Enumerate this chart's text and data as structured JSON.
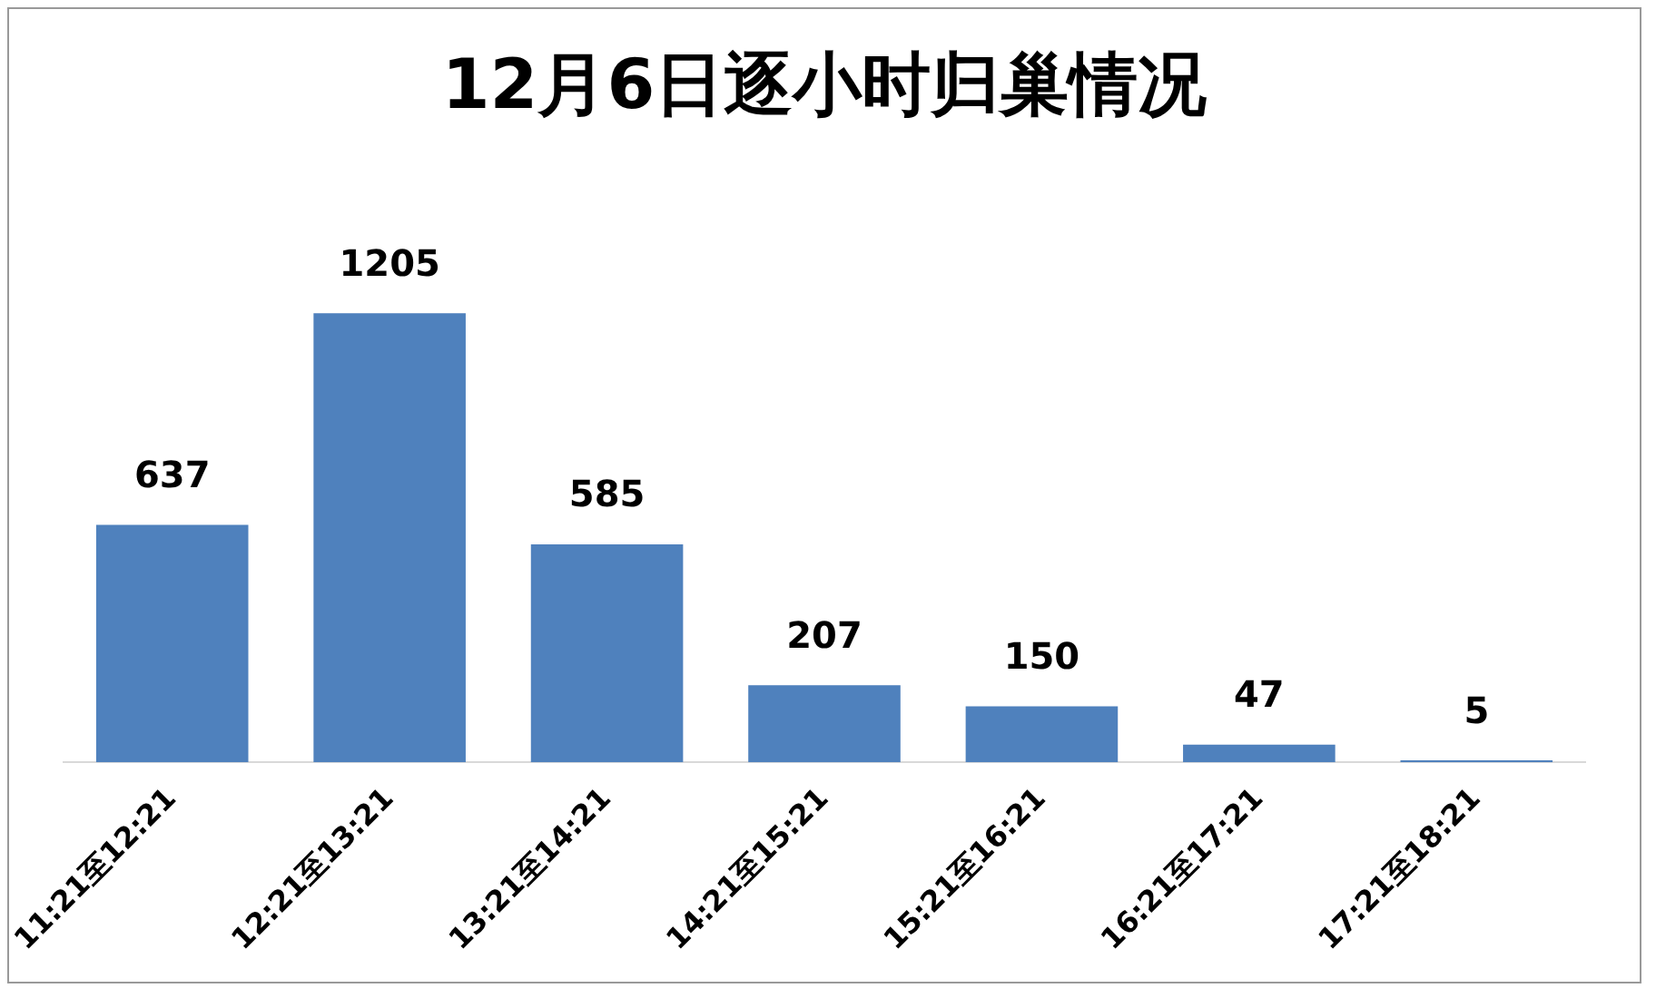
{
  "chart_data": {
    "type": "bar",
    "title": "12月6日逐小时归巢情况",
    "categories": [
      "11:21至12:21",
      "12:21至13:21",
      "13:21至14:21",
      "14:21至15:21",
      "15:21至16:21",
      "16:21至17:21",
      "17:21至18:21"
    ],
    "values": [
      637,
      1205,
      585,
      207,
      150,
      47,
      5
    ],
    "color": "#4f81bd",
    "data_labels": true,
    "grid": false,
    "legend": false
  }
}
